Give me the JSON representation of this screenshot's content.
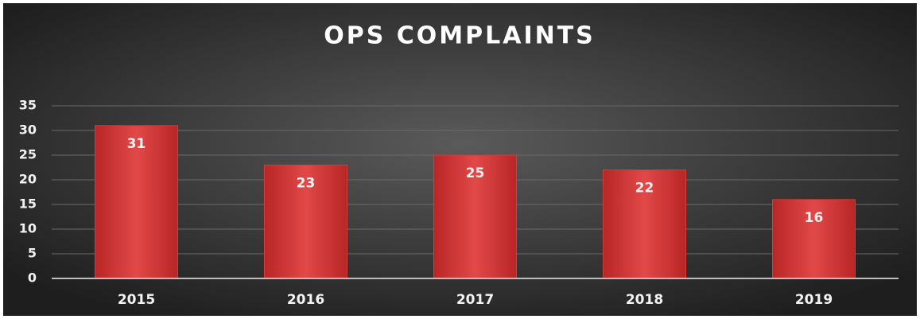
{
  "chart_data": {
    "type": "bar",
    "title": "OPS COMPLAINTS",
    "categories": [
      "2015",
      "2016",
      "2017",
      "2018",
      "2019"
    ],
    "values": [
      31,
      23,
      25,
      22,
      16
    ],
    "color": "#d63a3a",
    "ylim": [
      0,
      35
    ],
    "yticks": [
      0,
      5,
      10,
      15,
      20,
      25,
      30,
      35
    ],
    "grid": true
  }
}
